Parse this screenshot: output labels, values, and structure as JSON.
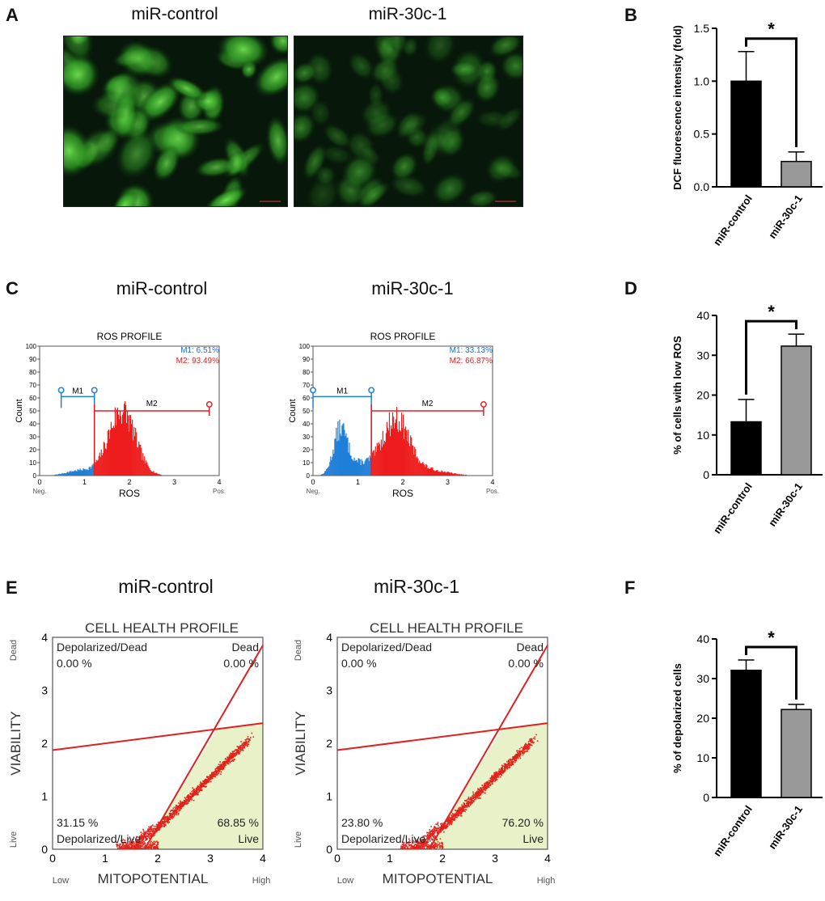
{
  "panels": {
    "A": {
      "letter": "A",
      "images": [
        {
          "title": "miR-control",
          "brightness": "high"
        },
        {
          "title": "miR-30c-1",
          "brightness": "low"
        }
      ]
    },
    "B": {
      "letter": "B"
    },
    "C": {
      "letter": "C",
      "histograms": [
        {
          "title": "miR-control",
          "plot_title": "ROS PROFILE",
          "m1_label": "M1: 6.51%",
          "m2_label": "M2: 93.49%",
          "gate_split": 1.22,
          "gate_start": 0.48,
          "gate_end": 3.78
        },
        {
          "title": "miR-30c-1",
          "plot_title": "ROS PROFILE",
          "m1_label": "M1: 33.13%",
          "m2_label": "M2: 66.87%",
          "gate_split": 1.3,
          "gate_start": 0.0,
          "gate_end": 3.8
        }
      ],
      "gate_names": [
        "M1",
        "M2"
      ],
      "xlabel": "ROS",
      "ylabel": "Count",
      "neg_label": "Neg.",
      "pos_label": "Pos.",
      "yticks": [
        "0",
        "10",
        "20",
        "30",
        "40",
        "50",
        "60",
        "70",
        "80",
        "90",
        "100"
      ],
      "xticks": [
        "0",
        "1",
        "2",
        "3",
        "4"
      ]
    },
    "D": {
      "letter": "D"
    },
    "E": {
      "letter": "E",
      "scatters": [
        {
          "title": "miR-control",
          "plot_title": "CELL HEALTH PROFILE",
          "tl_name": "Depolarized/Dead",
          "tl_value": "0.00 %",
          "tr_name": "Dead",
          "tr_value": "0.00 %",
          "bl_value": "31.15 %",
          "bl_name": "Depolarized/Live",
          "br_value": "68.85 %",
          "br_name": "Live"
        },
        {
          "title": "miR-30c-1",
          "plot_title": "CELL HEALTH PROFILE",
          "tl_name": "Depolarized/Dead",
          "tl_value": "0.00 %",
          "tr_name": "Dead",
          "tr_value": "0.00 %",
          "bl_value": "23.80 %",
          "bl_name": "Depolarized/Live",
          "br_value": "76.20 %",
          "br_name": "Live"
        }
      ],
      "xlabel": "MITOPOTENTIAL",
      "ylabel": "VIABILITY",
      "low_label": "Low",
      "high_label": "High",
      "dead_label": "Dead",
      "live_label": "Live",
      "xticks": [
        "0",
        "1",
        "2",
        "3",
        "4"
      ],
      "yticks": [
        "0",
        "1",
        "2",
        "3",
        "4"
      ]
    },
    "F": {
      "letter": "F"
    }
  },
  "chart_data": [
    {
      "id": "B",
      "type": "bar",
      "categories": [
        "miR-control",
        "miR-30c-1"
      ],
      "values": [
        1.0,
        0.24
      ],
      "errors": [
        0.28,
        0.09
      ],
      "colors": [
        "#000000",
        "#999999"
      ],
      "ylabel": "DCF fluorescence intensity (fold)",
      "ylim": [
        0,
        1.5
      ],
      "yticks": [
        0,
        0.5,
        1.0,
        1.5
      ],
      "ytick_labels": [
        "0.0",
        "0.5",
        "1.0",
        "1.5"
      ],
      "significance": "*"
    },
    {
      "id": "D",
      "type": "bar",
      "categories": [
        "miR-control",
        "miR-30c-1"
      ],
      "values": [
        13.3,
        32.3
      ],
      "errors": [
        5.6,
        3.0
      ],
      "colors": [
        "#000000",
        "#999999"
      ],
      "ylabel": "% of cells with low ROS",
      "ylim": [
        0,
        40
      ],
      "yticks": [
        0,
        10,
        20,
        30,
        40
      ],
      "ytick_labels": [
        "0",
        "10",
        "20",
        "30",
        "40"
      ],
      "significance": "*"
    },
    {
      "id": "F",
      "type": "bar",
      "categories": [
        "miR-control",
        "miR-30c-1"
      ],
      "values": [
        32.1,
        22.2
      ],
      "errors": [
        2.6,
        1.3
      ],
      "colors": [
        "#000000",
        "#999999"
      ],
      "ylabel": "% of depolarized cells",
      "ylim": [
        0,
        40
      ],
      "yticks": [
        0,
        10,
        20,
        30,
        40
      ],
      "ytick_labels": [
        "0",
        "10",
        "20",
        "30",
        "40"
      ],
      "significance": "*"
    }
  ]
}
